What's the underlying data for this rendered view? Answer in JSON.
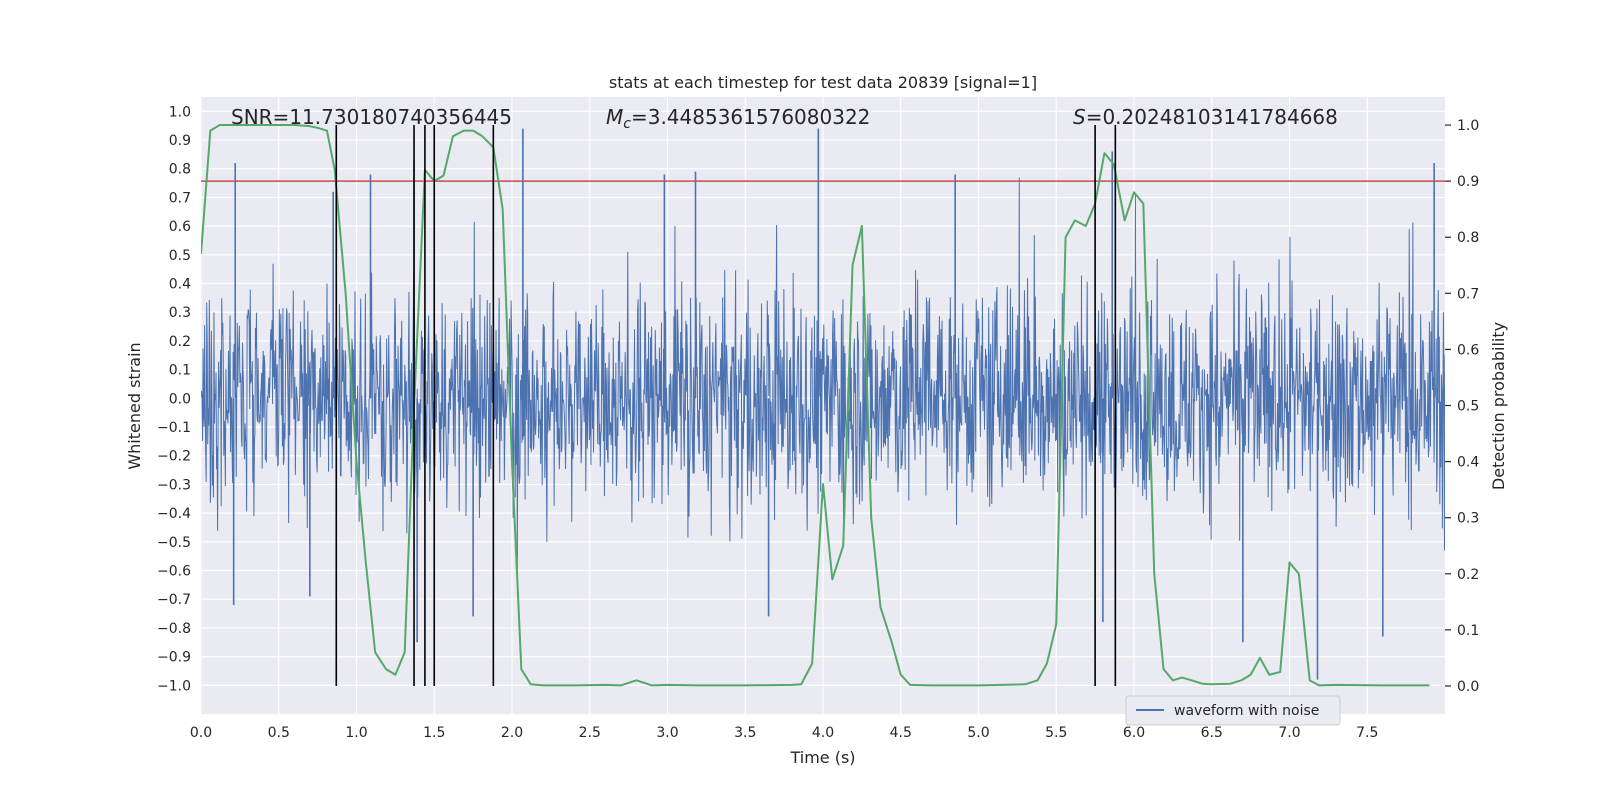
{
  "chart_data": {
    "type": "line",
    "title": "stats at each timestep for test data 20839 [signal=1]",
    "xlabel": "Time (s)",
    "ylabel_left": "Whitened strain",
    "ylabel_right": "Detection probability",
    "xlim": [
      0,
      8
    ],
    "ylim_left": [
      -1.1,
      1.05
    ],
    "ylim_right": [
      -0.05,
      1.05
    ],
    "x_ticks": [
      0,
      0.5,
      1,
      1.5,
      2,
      2.5,
      3,
      3.5,
      4,
      4.5,
      5,
      5.5,
      6,
      6.5,
      7,
      7.5
    ],
    "x_tick_labels": [
      "0.0",
      "0.5",
      "1.0",
      "1.5",
      "2.0",
      "2.5",
      "3.0",
      "3.5",
      "4.0",
      "4.5",
      "5.0",
      "5.5",
      "6.0",
      "6.5",
      "7.0",
      "7.5"
    ],
    "y_left_ticks": [
      1,
      0.9,
      0.8,
      0.7,
      0.6,
      0.5,
      0.4,
      0.3,
      0.2,
      0.1,
      0,
      -0.1,
      -0.2,
      -0.3,
      -0.4,
      -0.5,
      -0.6,
      -0.7,
      -0.8,
      -0.9,
      -1
    ],
    "y_left_tick_labels": [
      "1.0",
      "0.9",
      "0.8",
      "0.7",
      "0.6",
      "0.5",
      "0.4",
      "0.3",
      "0.2",
      "0.1",
      "0.0",
      "−0.1",
      "−0.2",
      "−0.3",
      "−0.4",
      "−0.5",
      "−0.6",
      "−0.7",
      "−0.8",
      "−0.9",
      "−1.0"
    ],
    "y_right_ticks": [
      1,
      0.9,
      0.8,
      0.7,
      0.6,
      0.5,
      0.4,
      0.3,
      0.2,
      0.1,
      0
    ],
    "y_right_tick_labels": [
      "1.0",
      "0.9",
      "0.8",
      "0.7",
      "0.6",
      "0.5",
      "0.4",
      "0.3",
      "0.2",
      "0.1",
      "0.0"
    ],
    "annotations": {
      "snr": "SNR=11.730180740356445",
      "mc_symbol": "M",
      "mc_sub": "c",
      "mc_value": "=3.4485361576080322",
      "s_symbol": "S",
      "s_value": "=0.20248103141784668"
    },
    "threshold": 0.9,
    "vertical_lines": [
      0.87,
      1.37,
      1.44,
      1.5,
      1.88,
      5.75,
      5.88
    ],
    "legend": [
      "waveform with noise"
    ],
    "legend_position": "lower-right",
    "series": [
      {
        "name": "waveform with noise",
        "color": "#4c72b0",
        "axis": "left",
        "note": "noisy strain, approximately |y| < 0.4 with spikes up to about ±0.9",
        "peaks": [
          {
            "t": 0.22,
            "v": 0.82
          },
          {
            "t": 0.85,
            "v": 0.72
          },
          {
            "t": 1.09,
            "v": 0.78
          },
          {
            "t": 1.37,
            "v": 0.83
          },
          {
            "t": 2.07,
            "v": 0.94
          },
          {
            "t": 2.98,
            "v": 0.78
          },
          {
            "t": 3.18,
            "v": 0.79
          },
          {
            "t": 3.97,
            "v": 0.94
          },
          {
            "t": 4.85,
            "v": 0.78
          },
          {
            "t": 5.86,
            "v": 0.86
          },
          {
            "t": 7.93,
            "v": 0.82
          }
        ],
        "troughs": [
          {
            "t": 0.21,
            "v": -0.72
          },
          {
            "t": 0.7,
            "v": -0.69
          },
          {
            "t": 1.39,
            "v": -0.85
          },
          {
            "t": 1.75,
            "v": -0.76
          },
          {
            "t": 3.65,
            "v": -0.76
          },
          {
            "t": 5.8,
            "v": -0.78
          },
          {
            "t": 6.7,
            "v": -0.85
          },
          {
            "t": 7.18,
            "v": -0.98
          },
          {
            "t": 7.6,
            "v": -0.83
          }
        ]
      },
      {
        "name": "Detection probability",
        "color": "#55a868",
        "axis": "right",
        "x": [
          0,
          0.06,
          0.12,
          0.2,
          0.4,
          0.6,
          0.7,
          0.75,
          0.81,
          0.86,
          0.93,
          1.0,
          1.06,
          1.12,
          1.19,
          1.25,
          1.31,
          1.37,
          1.44,
          1.5,
          1.56,
          1.62,
          1.69,
          1.75,
          1.81,
          1.88,
          1.94,
          2.0,
          2.06,
          2.12,
          2.2,
          2.4,
          2.6,
          2.7,
          2.8,
          2.9,
          3.0,
          3.2,
          3.5,
          3.8,
          3.86,
          3.93,
          4.0,
          4.06,
          4.13,
          4.19,
          4.25,
          4.31,
          4.37,
          4.44,
          4.5,
          4.56,
          4.7,
          5.0,
          5.3,
          5.38,
          5.44,
          5.5,
          5.56,
          5.62,
          5.69,
          5.75,
          5.81,
          5.87,
          5.94,
          6.0,
          6.06,
          6.13,
          6.19,
          6.25,
          6.31,
          6.37,
          6.44,
          6.5,
          6.62,
          6.69,
          6.75,
          6.81,
          6.87,
          6.94,
          7.0,
          7.06,
          7.13,
          7.19,
          7.3,
          7.6,
          7.9
        ],
        "y": [
          0.77,
          0.99,
          1.0,
          1.0,
          1.0,
          1.0,
          0.998,
          0.995,
          0.99,
          0.92,
          0.7,
          0.4,
          0.22,
          0.06,
          0.03,
          0.02,
          0.06,
          0.5,
          0.92,
          0.9,
          0.91,
          0.98,
          0.99,
          0.99,
          0.98,
          0.96,
          0.85,
          0.4,
          0.03,
          0.003,
          0.001,
          0.001,
          0.002,
          0.001,
          0.01,
          0.001,
          0.002,
          0.001,
          0.001,
          0.002,
          0.003,
          0.04,
          0.36,
          0.19,
          0.25,
          0.75,
          0.82,
          0.3,
          0.14,
          0.08,
          0.02,
          0.002,
          0.001,
          0.001,
          0.003,
          0.01,
          0.04,
          0.11,
          0.8,
          0.83,
          0.82,
          0.86,
          0.95,
          0.93,
          0.83,
          0.88,
          0.86,
          0.2,
          0.03,
          0.01,
          0.015,
          0.01,
          0.004,
          0.003,
          0.004,
          0.01,
          0.02,
          0.05,
          0.02,
          0.025,
          0.22,
          0.2,
          0.01,
          0.001,
          0.002,
          0.001,
          0.001
        ]
      }
    ]
  }
}
